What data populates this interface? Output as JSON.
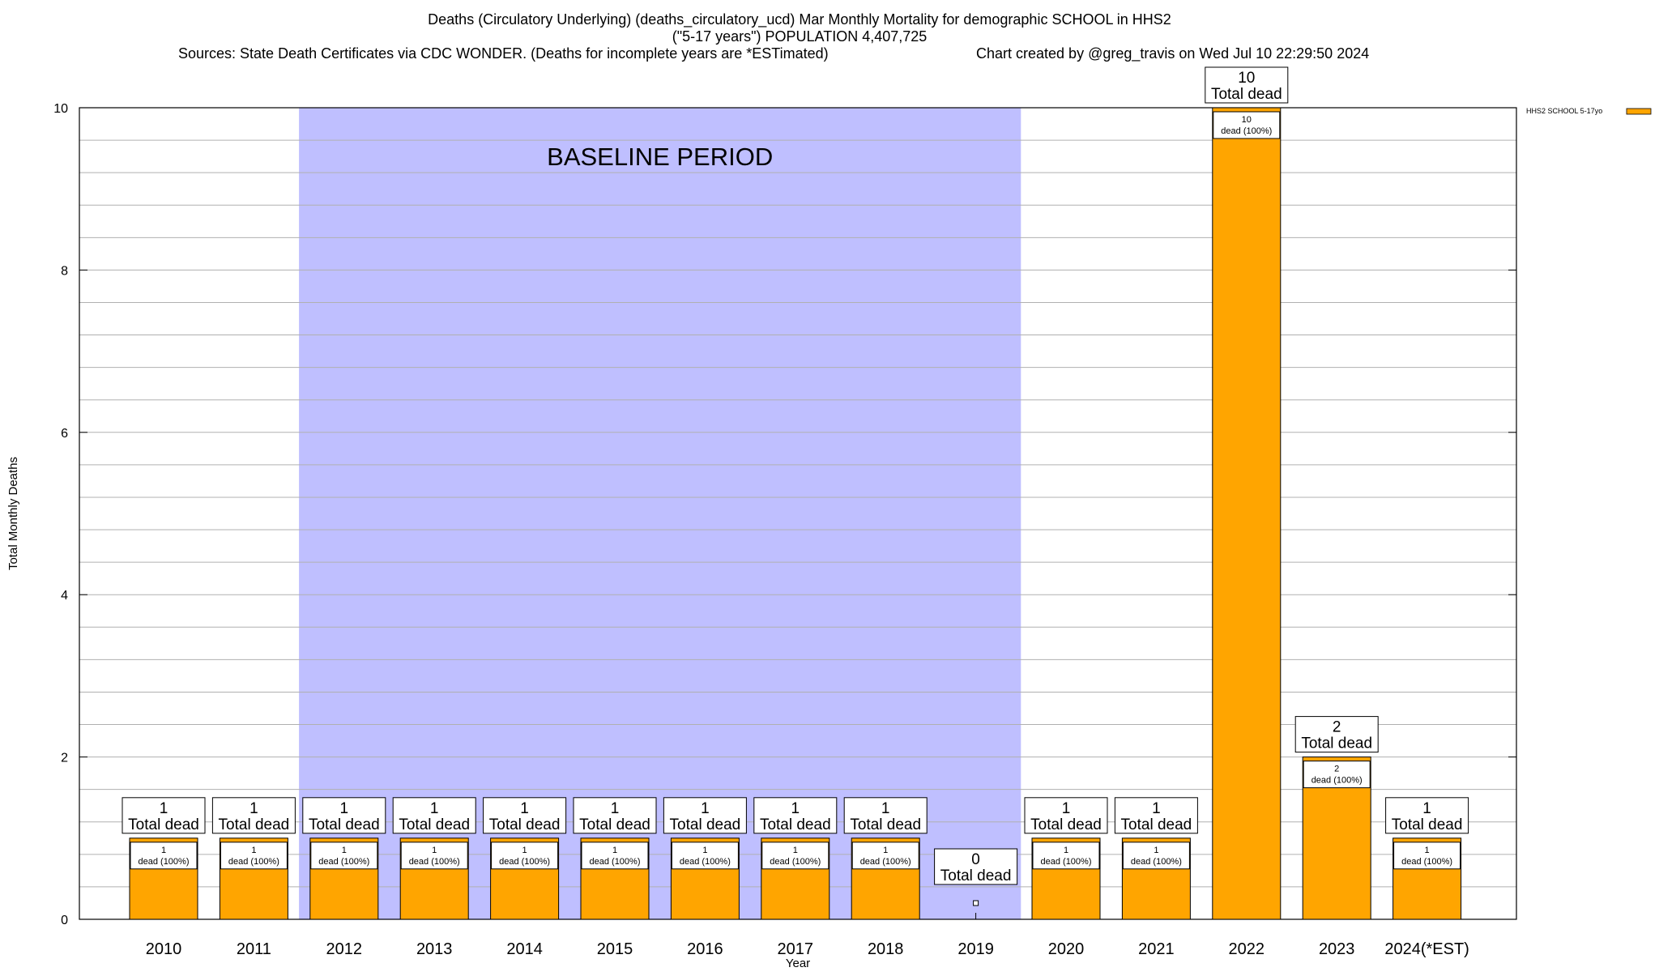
{
  "chart_data": {
    "type": "bar",
    "title_lines": [
      "Deaths (Circulatory Underlying) (deaths_circulatory_ucd) Mar Monthly Mortality for demographic SCHOOL in HHS2",
      "(\"5-17 years\") POPULATION 4,407,725"
    ],
    "sources": "Sources: State Death Certificates via CDC WONDER. (Deaths for incomplete years are *ESTimated)",
    "credit": "Chart created by @greg_travis on Wed Jul 10 22:29:50 2024",
    "xlabel": "Year",
    "ylabel": "Total Monthly Deaths",
    "ylim": [
      0,
      10
    ],
    "yticks": [
      0,
      2,
      4,
      6,
      8,
      10
    ],
    "categories": [
      "2010",
      "2011",
      "2012",
      "2013",
      "2014",
      "2015",
      "2016",
      "2017",
      "2018",
      "2019",
      "2020",
      "2021",
      "2022",
      "2023",
      "2024(*EST)"
    ],
    "series": [
      {
        "name": "HHS2 SCHOOL 5-17yo",
        "color": "#ffa500",
        "values": [
          1,
          1,
          1,
          1,
          1,
          1,
          1,
          1,
          1,
          0,
          1,
          1,
          10,
          2,
          1
        ]
      }
    ],
    "total_label_suffix": "Total dead",
    "inner_label_suffix": "dead (100%)",
    "baseline": {
      "label": "BASELINE PERIOD",
      "from": "2012",
      "to": "2019",
      "color": "#bfbfff"
    },
    "grid": true,
    "legend_position": "top-right"
  }
}
